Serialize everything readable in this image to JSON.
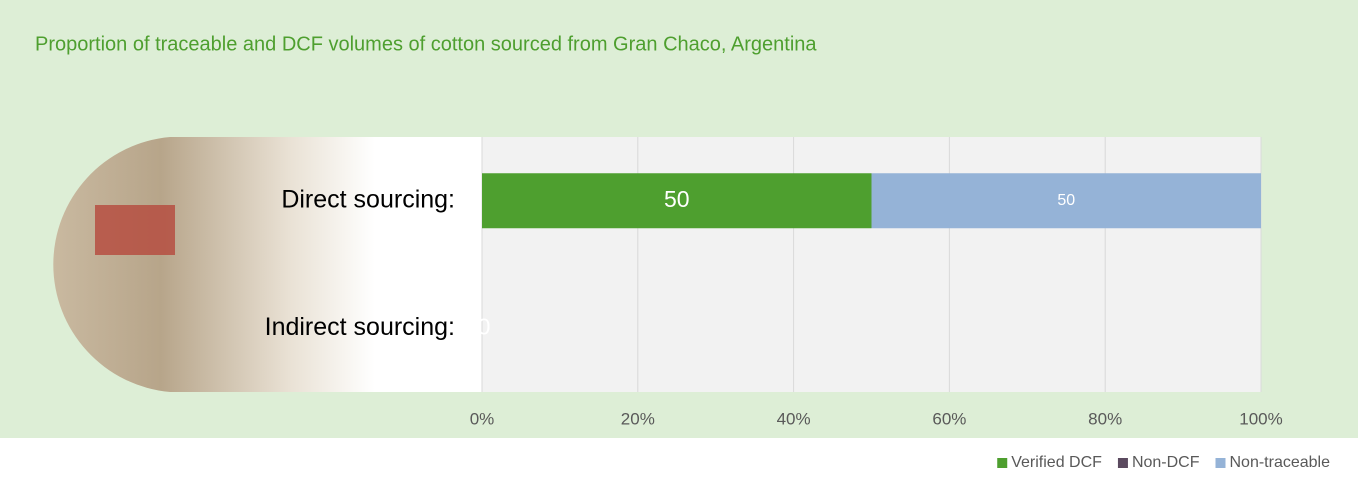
{
  "chart_data": {
    "type": "stacked-bar-horizontal",
    "title": "Proportion of traceable and DCF volumes of cotton sourced from Gran Chaco, Argentina",
    "categories": [
      "Direct sourcing:",
      "Indirect sourcing:"
    ],
    "series": [
      {
        "name": "Verified DCF",
        "color": "#4e9f2f",
        "values": [
          50,
          0
        ]
      },
      {
        "name": "Non-DCF",
        "color": "#5b4a5f",
        "values": [
          0,
          0
        ]
      },
      {
        "name": "Non-traceable",
        "color": "#95b3d7",
        "values": [
          50,
          0
        ]
      }
    ],
    "xlim": [
      0,
      100
    ],
    "xticks": [
      {
        "value": 0,
        "label": "0%"
      },
      {
        "value": 20,
        "label": "20%"
      },
      {
        "value": 40,
        "label": "40%"
      },
      {
        "value": 60,
        "label": "60%"
      },
      {
        "value": 80,
        "label": "80%"
      },
      {
        "value": 100,
        "label": "100%"
      }
    ],
    "grid": true,
    "legend": "bottom-right"
  }
}
